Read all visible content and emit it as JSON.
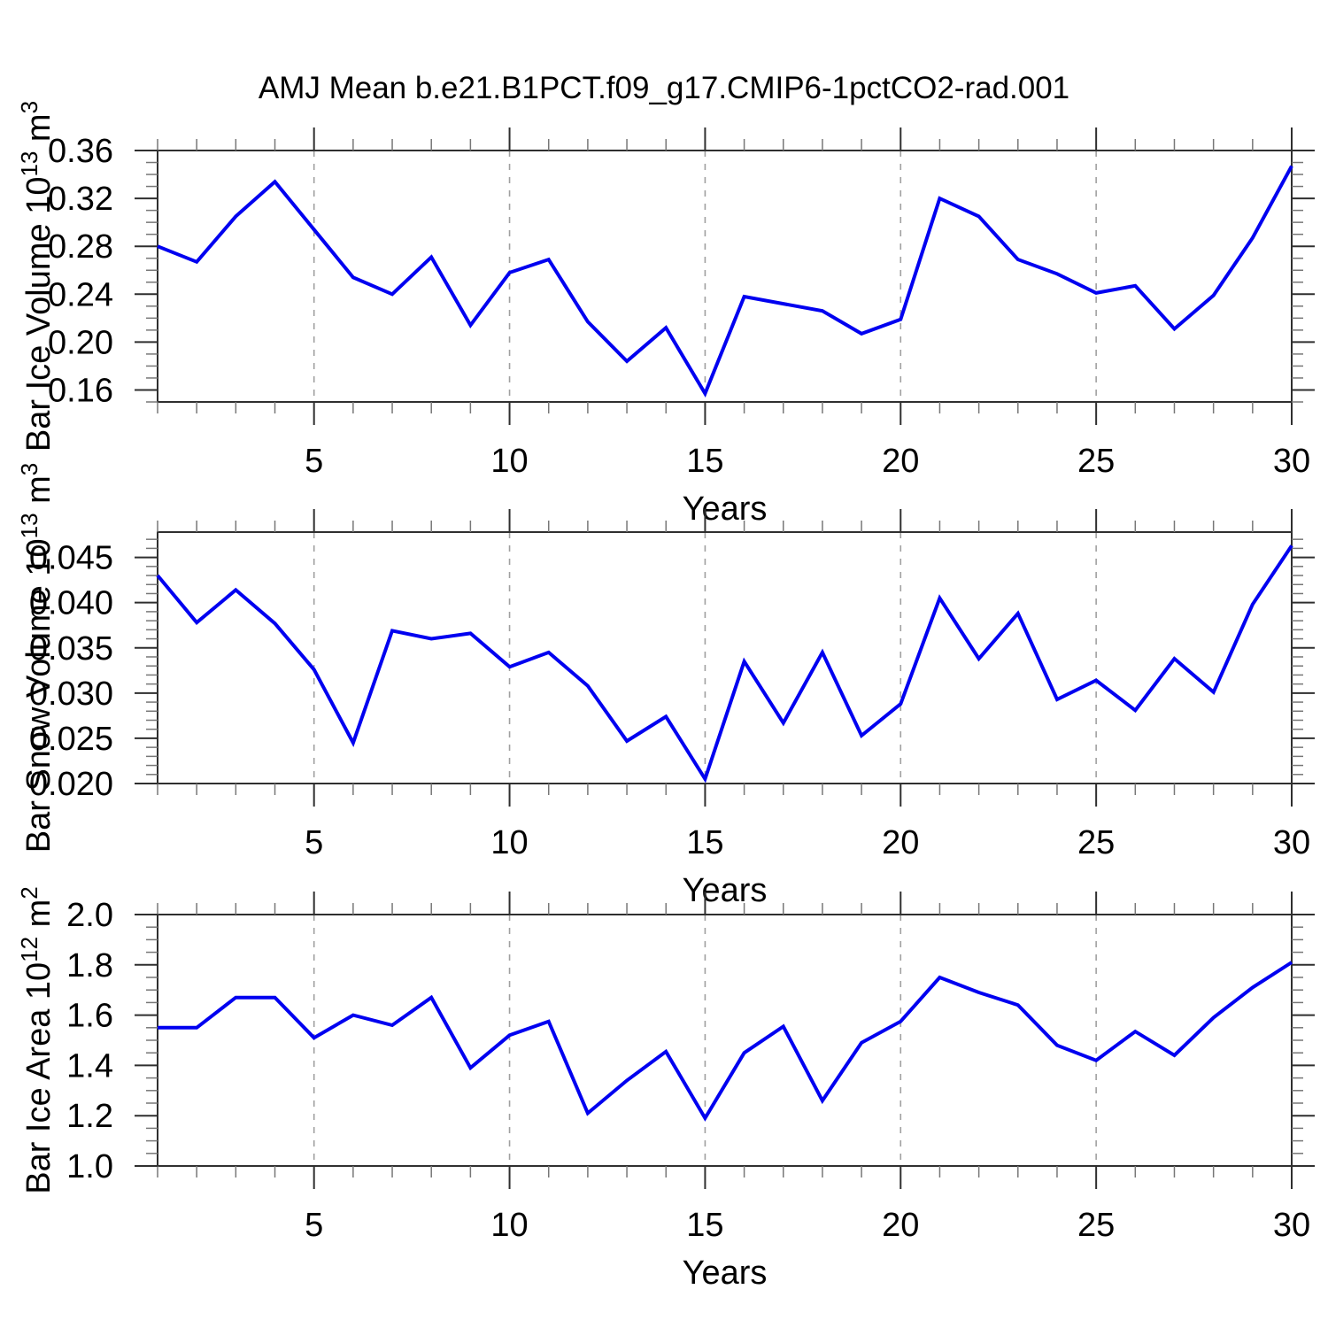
{
  "title": "AMJ Mean b.e21.B1PCT.f09_g17.CMIP6-1pctCO2-rad.001",
  "styles": {
    "line_color": "#0000f0",
    "frame_color": "#2f2f2f",
    "major_tick_color": "#2f2f2f",
    "minor_tick_color": "#777777",
    "grid_color": "#a0a0a0",
    "text_color": "#000000"
  },
  "chart_data": [
    {
      "type": "line",
      "ylabel": {
        "prefix": "Bar Ice Volume 10",
        "sup": "13",
        "unit": " m",
        "unit_sup": "3"
      },
      "xlabel": "Years",
      "x": [
        1,
        2,
        3,
        4,
        5,
        6,
        7,
        8,
        9,
        10,
        11,
        12,
        13,
        14,
        15,
        16,
        17,
        18,
        19,
        20,
        21,
        22,
        23,
        24,
        25,
        26,
        27,
        28,
        29,
        30
      ],
      "values": [
        0.28,
        0.267,
        0.305,
        0.334,
        0.294,
        0.254,
        0.24,
        0.271,
        0.214,
        0.258,
        0.269,
        0.217,
        0.184,
        0.212,
        0.157,
        0.238,
        0.232,
        0.226,
        0.207,
        0.219,
        0.32,
        0.305,
        0.269,
        0.257,
        0.241,
        0.247,
        0.211,
        0.239,
        0.287,
        0.347
      ],
      "xlim": [
        1,
        30
      ],
      "ylim": [
        0.15,
        0.36
      ],
      "xticks": {
        "values": [
          5,
          10,
          15,
          20,
          25,
          30
        ],
        "labels": [
          "5",
          "10",
          "15",
          "20",
          "25",
          "30"
        ]
      },
      "yticks": {
        "values": [
          0.16,
          0.2,
          0.24,
          0.28,
          0.32,
          0.36
        ],
        "labels": [
          "0.16",
          "0.20",
          "0.24",
          "0.28",
          "0.32",
          "0.36"
        ]
      },
      "grid_at": [
        5,
        10,
        15,
        20,
        25
      ],
      "x_minor_step": 1,
      "y_minor_step": 0.01,
      "grid_on": true,
      "legend": "none"
    },
    {
      "type": "line",
      "ylabel": {
        "prefix": "Bar Snow Volume 10",
        "sup": "13",
        "unit": " m",
        "unit_sup": "3"
      },
      "xlabel": "Years",
      "x": [
        1,
        2,
        3,
        4,
        5,
        6,
        7,
        8,
        9,
        10,
        11,
        12,
        13,
        14,
        15,
        16,
        17,
        18,
        19,
        20,
        21,
        22,
        23,
        24,
        25,
        26,
        27,
        28,
        29,
        30
      ],
      "values": [
        0.043,
        0.0378,
        0.0414,
        0.0377,
        0.0326,
        0.0245,
        0.0369,
        0.036,
        0.0366,
        0.0329,
        0.0345,
        0.0308,
        0.0247,
        0.0274,
        0.0205,
        0.0335,
        0.0267,
        0.0345,
        0.0253,
        0.0288,
        0.0405,
        0.0338,
        0.0388,
        0.0293,
        0.0314,
        0.0281,
        0.0338,
        0.0301,
        0.0398,
        0.0463
      ],
      "xlim": [
        1,
        30
      ],
      "ylim": [
        0.02,
        0.0478
      ],
      "xticks": {
        "values": [
          5,
          10,
          15,
          20,
          25,
          30
        ],
        "labels": [
          "5",
          "10",
          "15",
          "20",
          "25",
          "30"
        ]
      },
      "yticks": {
        "values": [
          0.02,
          0.025,
          0.03,
          0.035,
          0.04,
          0.045
        ],
        "labels": [
          "0.020",
          "0.025",
          "0.030",
          "0.035",
          "0.040",
          "0.045"
        ]
      },
      "grid_at": [
        5,
        10,
        15,
        20,
        25
      ],
      "x_minor_step": 1,
      "y_minor_step": 0.001,
      "grid_on": true,
      "legend": "none"
    },
    {
      "type": "line",
      "ylabel": {
        "prefix": "Bar Ice Area 10",
        "sup": "12",
        "unit": " m",
        "unit_sup": "2"
      },
      "xlabel": "Years",
      "x": [
        1,
        2,
        3,
        4,
        5,
        6,
        7,
        8,
        9,
        10,
        11,
        12,
        13,
        14,
        15,
        16,
        17,
        18,
        19,
        20,
        21,
        22,
        23,
        24,
        25,
        26,
        27,
        28,
        29,
        30
      ],
      "values": [
        1.55,
        1.55,
        1.67,
        1.67,
        1.51,
        1.6,
        1.56,
        1.67,
        1.39,
        1.52,
        1.575,
        1.21,
        1.34,
        1.455,
        1.19,
        1.45,
        1.555,
        1.26,
        1.49,
        1.575,
        1.75,
        1.69,
        1.64,
        1.48,
        1.42,
        1.535,
        1.44,
        1.59,
        1.71,
        1.81
      ],
      "xlim": [
        1,
        30
      ],
      "ylim": [
        1.0,
        2.0
      ],
      "xticks": {
        "values": [
          5,
          10,
          15,
          20,
          25,
          30
        ],
        "labels": [
          "5",
          "10",
          "15",
          "20",
          "25",
          "30"
        ]
      },
      "yticks": {
        "values": [
          1.0,
          1.2,
          1.4,
          1.6,
          1.8,
          2.0
        ],
        "labels": [
          "1.0",
          "1.2",
          "1.4",
          "1.6",
          "1.8",
          "2.0"
        ]
      },
      "grid_at": [
        5,
        10,
        15,
        20,
        25
      ],
      "x_minor_step": 1,
      "y_minor_step": 0.05,
      "grid_on": true,
      "legend": "none"
    }
  ]
}
